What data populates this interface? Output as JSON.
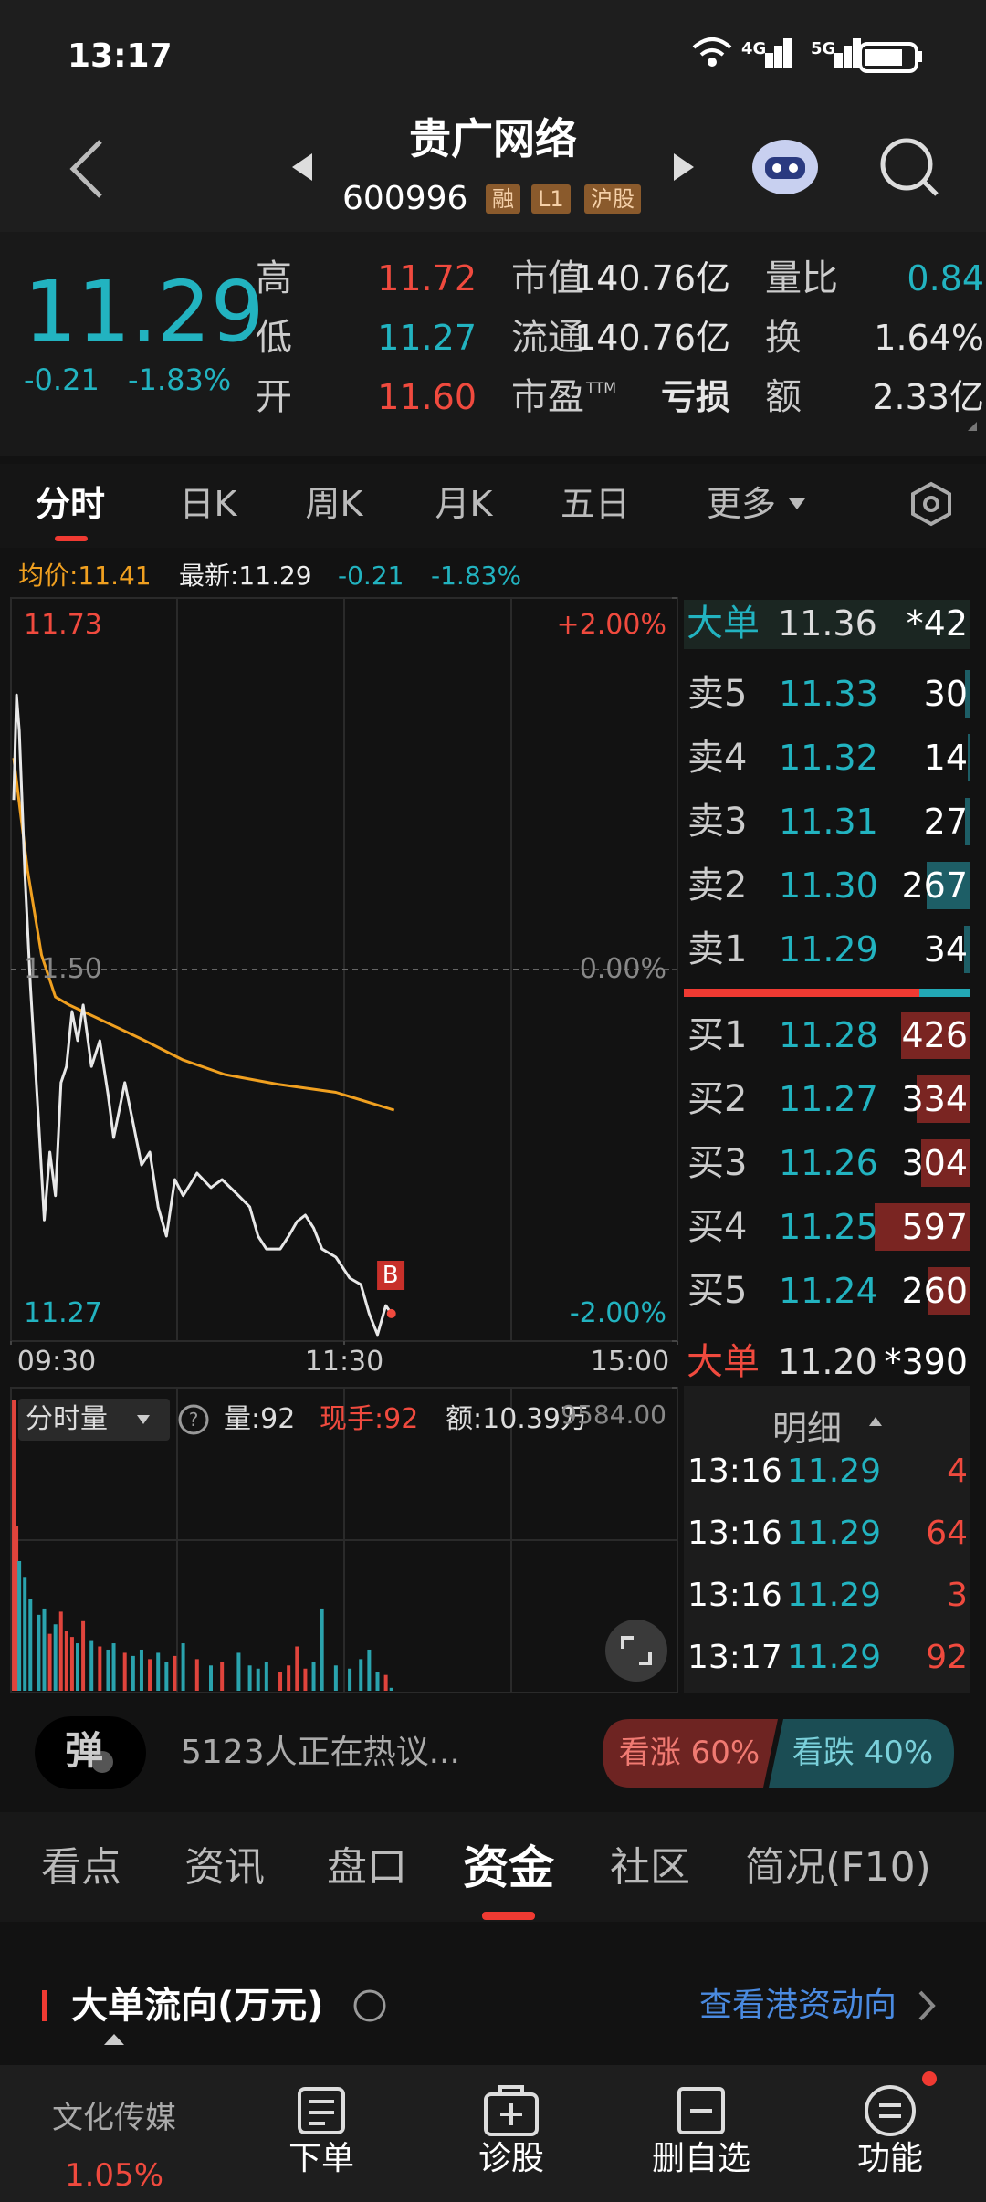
{
  "status_bar": {
    "time": "13:17",
    "net1": "4G",
    "net2": "5G"
  },
  "header": {
    "title": "贵广网络",
    "code": "600996",
    "badges": [
      "融",
      "L1",
      "沪股"
    ]
  },
  "quote": {
    "price": "11.29",
    "change": "-0.21",
    "change_pct": "-1.83%",
    "color": "#22b3c0",
    "stats": [
      {
        "label": "高",
        "value": "11.72",
        "color": "#f04a3e"
      },
      {
        "label": "低",
        "value": "11.27",
        "color": "#22b3c0"
      },
      {
        "label": "开",
        "value": "11.60",
        "color": "#f04a3e"
      },
      {
        "label": "市值",
        "value": "140.76亿",
        "color": "#e6e6e6"
      },
      {
        "label": "流通",
        "value": "140.76亿",
        "color": "#e6e6e6"
      },
      {
        "label": "市盈",
        "sup": "TTM",
        "value": "亏损",
        "color": "#e6e6e6"
      },
      {
        "label": "量比",
        "value": "0.84",
        "color": "#22b3c0"
      },
      {
        "label": "换",
        "value": "1.64%",
        "color": "#e6e6e6"
      },
      {
        "label": "额",
        "value": "2.33亿",
        "color": "#e6e6e6"
      }
    ]
  },
  "tabs": {
    "items": [
      "分时",
      "日K",
      "周K",
      "月K",
      "五日",
      "更多"
    ],
    "active": 0
  },
  "intraday": {
    "type": "line",
    "avg_label": "均价:11.41",
    "latest_label": "最新:11.29",
    "change": "-0.21",
    "change_pct": "-1.83%",
    "buy_marker": "B",
    "ylim": [
      11.27,
      11.73
    ],
    "yticks": [
      11.27,
      {
        "value": 11.5,
        "label": "11.50"
      },
      11.73
    ],
    "y2lim": [
      -2,
      2
    ],
    "y2ticks": [
      {
        "value": -2,
        "label": "-2.00%"
      },
      {
        "value": 0,
        "label": "0.00%"
      },
      {
        "value": 2,
        "label": "+2.00%"
      }
    ],
    "xlim": [
      0,
      240
    ],
    "xticks": [
      {
        "value": 0,
        "label": "09:30"
      },
      {
        "value": 120,
        "label": "11:30"
      },
      {
        "value": 240,
        "label": "15:00"
      }
    ],
    "price": {
      "color": "#e8e8e8",
      "x": [
        1,
        2,
        3,
        5,
        7,
        10,
        12,
        14,
        16,
        18,
        20,
        22,
        24,
        26,
        29,
        32,
        35,
        37,
        41,
        44,
        47,
        50,
        53,
        56,
        59,
        62,
        67,
        72,
        76,
        82,
        86,
        89,
        92,
        97,
        100,
        103,
        106,
        109,
        112,
        117,
        122,
        126,
        129,
        132,
        135,
        137
      ],
      "values": [
        11.605,
        11.67,
        11.648,
        11.56,
        11.49,
        11.405,
        11.345,
        11.387,
        11.36,
        11.43,
        11.44,
        11.474,
        11.456,
        11.478,
        11.44,
        11.456,
        11.422,
        11.396,
        11.43,
        11.405,
        11.379,
        11.387,
        11.353,
        11.335,
        11.37,
        11.36,
        11.374,
        11.365,
        11.37,
        11.36,
        11.353,
        11.335,
        11.327,
        11.327,
        11.335,
        11.344,
        11.348,
        11.34,
        11.327,
        11.322,
        11.309,
        11.305,
        11.287,
        11.274,
        11.292,
        11.287
      ]
    },
    "avg": {
      "color": "#f0a020",
      "x": [
        1,
        6,
        11,
        16,
        21,
        31,
        47,
        62,
        77,
        96,
        117,
        138
      ],
      "values": [
        11.631,
        11.561,
        11.509,
        11.483,
        11.478,
        11.47,
        11.457,
        11.444,
        11.435,
        11.429,
        11.424,
        11.413
      ]
    }
  },
  "volume": {
    "label": "分时量",
    "vol": "量:92",
    "hand": "现手:92",
    "amount": "额:10.39万",
    "ylim": [
      0,
      9584
    ],
    "yticks": [
      {
        "value": 9584,
        "label": "9584.00"
      }
    ],
    "up_color": "#e0443c",
    "down_color": "#2aa3ad",
    "values": [
      9200,
      5200,
      4100,
      3600,
      2900,
      2400,
      2600,
      1800,
      2100,
      2500,
      1900,
      1700,
      1500,
      2200,
      1600,
      1400,
      1300,
      1500,
      1200,
      1100,
      1300,
      1000,
      1200,
      900,
      1100,
      1500,
      1000,
      800,
      900,
      1200,
      800,
      700,
      900,
      600,
      800,
      1400,
      700,
      900,
      2600,
      800,
      700,
      1000,
      1300,
      600,
      500,
      92
    ]
  },
  "order_book": {
    "big_sell": {
      "label": "大单",
      "price": "11.36",
      "count": "*42"
    },
    "asks": [
      {
        "label": "卖5",
        "price": "11.33",
        "volume": 30
      },
      {
        "label": "卖4",
        "price": "11.32",
        "volume": 14
      },
      {
        "label": "卖3",
        "price": "11.31",
        "volume": 27
      },
      {
        "label": "卖2",
        "price": "11.30",
        "volume": 267
      },
      {
        "label": "卖1",
        "price": "11.29",
        "volume": 34
      }
    ],
    "bids": [
      {
        "label": "买1",
        "price": "11.28",
        "volume": 426
      },
      {
        "label": "买2",
        "price": "11.27",
        "volume": 334
      },
      {
        "label": "买3",
        "price": "11.26",
        "volume": 304
      },
      {
        "label": "买4",
        "price": "11.25",
        "volume": 597
      },
      {
        "label": "买5",
        "price": "11.24",
        "volume": 260
      }
    ],
    "big_buy": {
      "label": "大单",
      "price": "11.20",
      "count": "*390"
    }
  },
  "ticks": {
    "title": "明细",
    "rows": [
      {
        "time": "13:16",
        "price": "11.29",
        "volume": "4"
      },
      {
        "time": "13:16",
        "price": "11.29",
        "volume": "64"
      },
      {
        "time": "13:16",
        "price": "11.29",
        "volume": "3"
      },
      {
        "time": "13:17",
        "price": "11.29",
        "volume": "92"
      }
    ]
  },
  "discussion": {
    "avatar": "弹",
    "text": "5123人正在热议...",
    "bull": "看涨 60%",
    "bear": "看跌 40%"
  },
  "section_tabs": {
    "items": [
      "看点",
      "资讯",
      "盘口",
      "资金",
      "社区",
      "简况(F10)"
    ],
    "active": 3
  },
  "flow": {
    "title": "大单流向(万元)",
    "link": "查看港资动向"
  },
  "bottom_nav": {
    "sector": "文化传媒",
    "sector_change": "1.05%",
    "items": [
      "下单",
      "诊股",
      "删自选",
      "功能"
    ]
  }
}
